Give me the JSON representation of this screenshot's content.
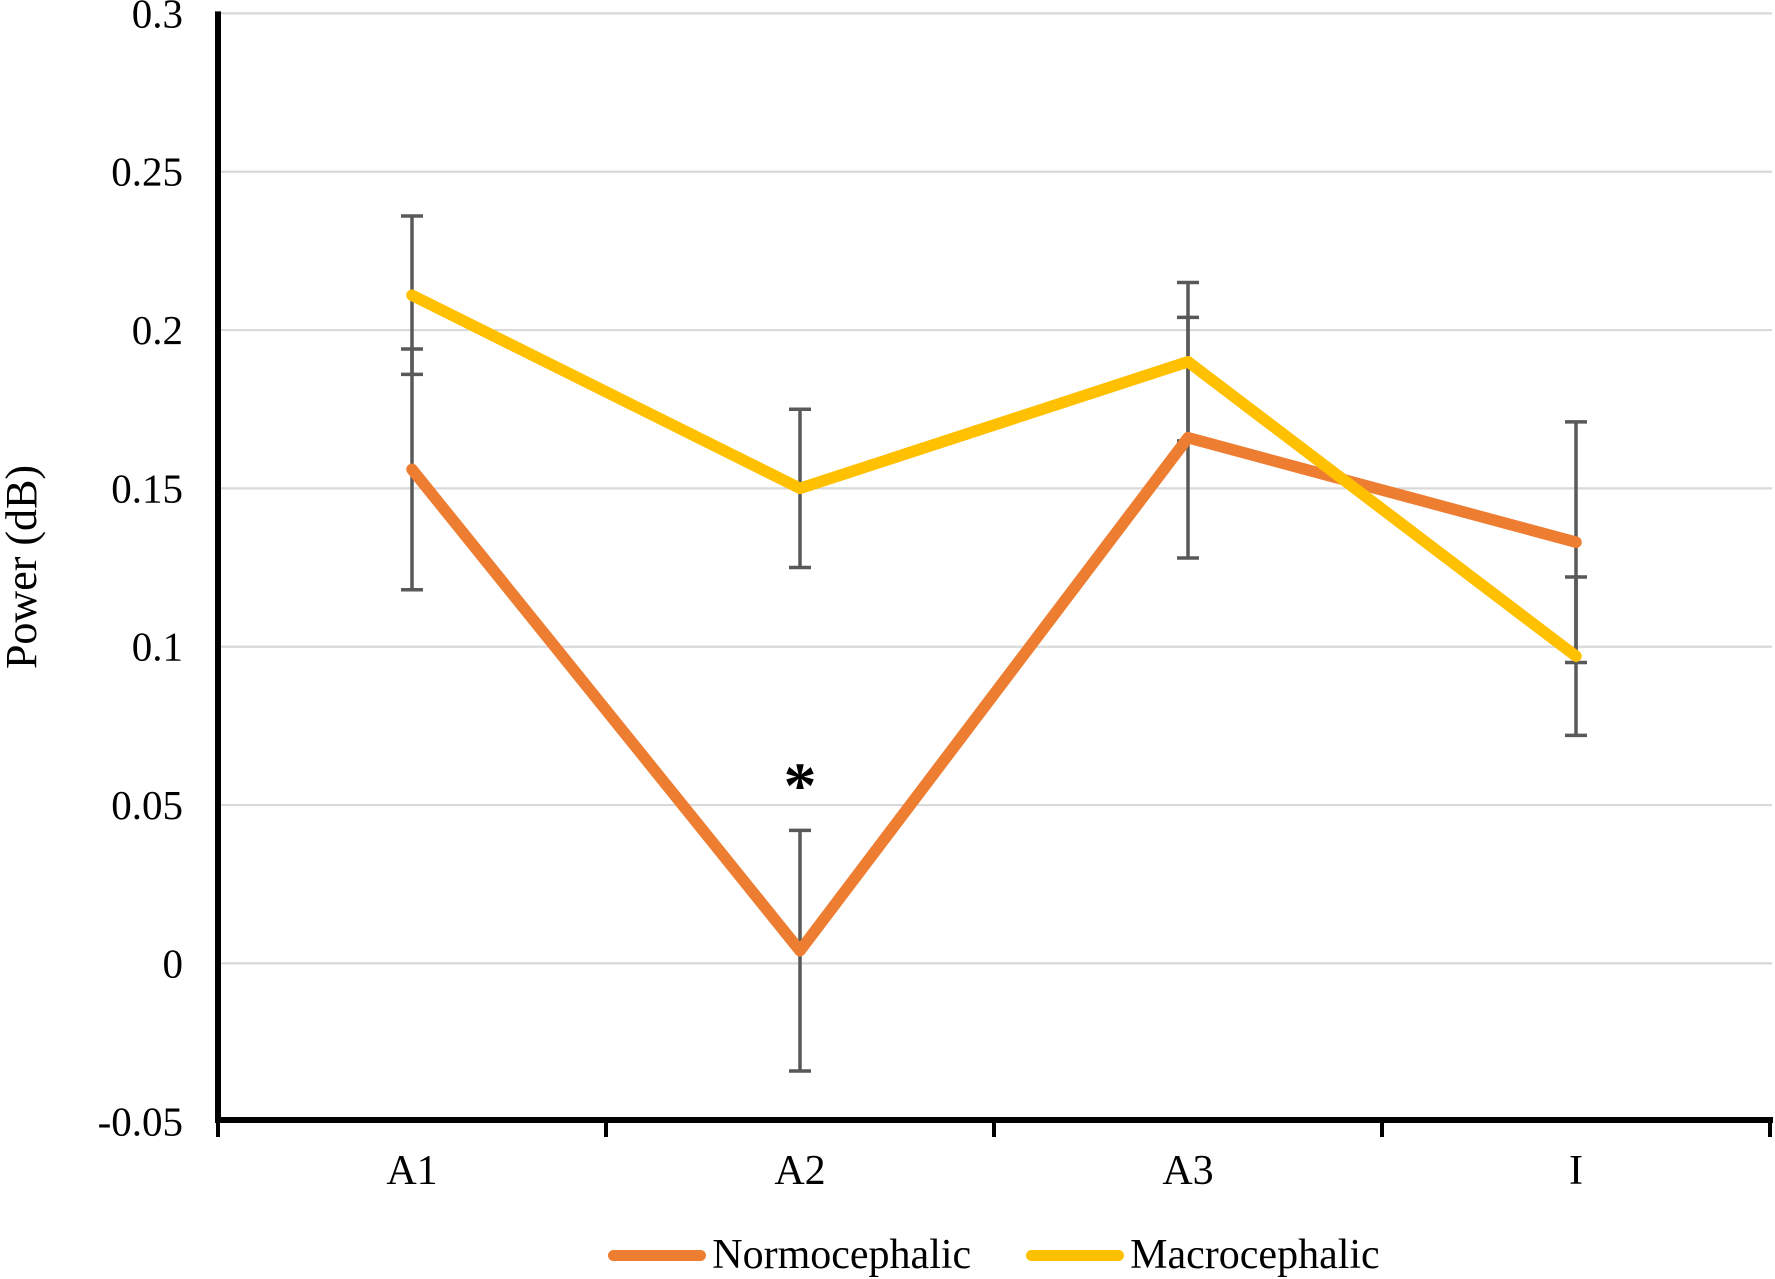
{
  "figure": {
    "ylabel": "Power (dB)",
    "significance_marker": "*"
  },
  "legend": {
    "items": [
      {
        "label": "Normocephalic",
        "color": "#ED7D31"
      },
      {
        "label": "Macrocephalic",
        "color": "#FFC000"
      }
    ]
  },
  "chart_data": {
    "type": "line",
    "title": "",
    "xlabel": "",
    "ylabel": "Power (dB)",
    "categories": [
      "A1",
      "A2",
      "A3",
      "I"
    ],
    "series": [
      {
        "name": "Normocephalic",
        "color": "#ED7D31",
        "values": [
          0.156,
          0.004,
          0.166,
          0.133
        ],
        "error_bars": [
          0.038,
          0.038,
          0.038,
          0.038
        ]
      },
      {
        "name": "Macrocephalic",
        "color": "#FFC000",
        "values": [
          0.211,
          0.15,
          0.19,
          0.097
        ],
        "error_bars": [
          0.025,
          0.025,
          0.025,
          0.025
        ]
      }
    ],
    "ylim": [
      -0.05,
      0.3
    ],
    "ytick_labels": [
      "0.3",
      "0.25",
      "0.2",
      "0.15",
      "0.1",
      "0.05",
      "0",
      "-0.05"
    ],
    "grid": true,
    "gridline_color": "#D9D9D9",
    "error_bar_color": "#595959",
    "axis_color": "#000000",
    "legend_position": "bottom",
    "annotations": [
      {
        "text": "*",
        "category": "A2",
        "value": 0.058
      }
    ]
  }
}
